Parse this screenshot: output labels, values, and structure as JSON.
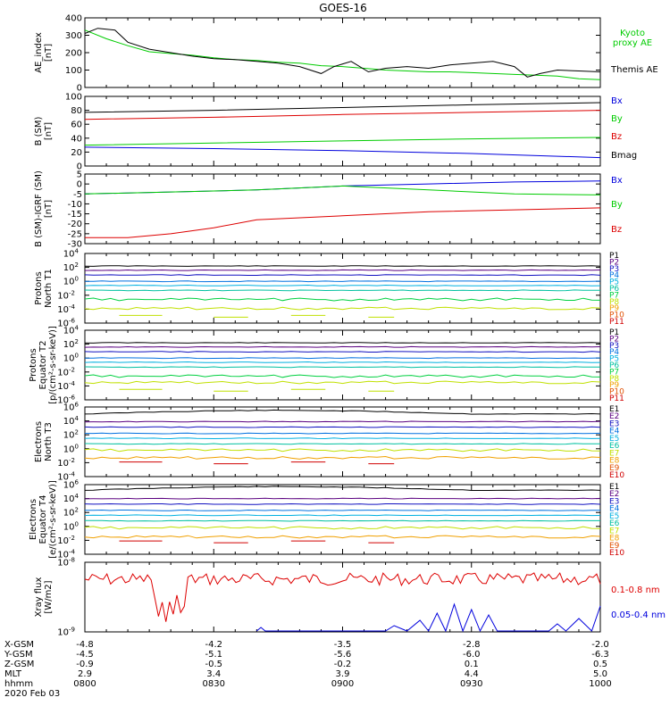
{
  "title": "GOES-16",
  "date_label": "2020 Feb 03",
  "time_axis": {
    "ticks": [
      "0800",
      "0830",
      "0900",
      "0930",
      "1000"
    ],
    "rows": [
      {
        "label": "X-GSM",
        "values": [
          "-4.8",
          "-4.2",
          "-3.5",
          "-2.8",
          "-2.0"
        ]
      },
      {
        "label": "Y-GSM",
        "values": [
          "-4.5",
          "-5.1",
          "-5.6",
          "-6.0",
          "-6.3"
        ]
      },
      {
        "label": "Z-GSM",
        "values": [
          "-0.9",
          "-0.5",
          "-0.2",
          "0.1",
          "0.5"
        ]
      },
      {
        "label": "MLT",
        "values": [
          "2.9",
          "3.4",
          "3.9",
          "4.4",
          "5.0"
        ]
      },
      {
        "label": "hhmm",
        "values": [
          "0800",
          "0830",
          "0900",
          "0930",
          "1000"
        ]
      }
    ]
  },
  "colors": {
    "black": "#000000",
    "red": "#dd0000",
    "green": "#00cc00",
    "blue": "#0000dd",
    "P1": "#000000",
    "P2": "#5a0080",
    "P3": "#1010c0",
    "P4": "#0070e0",
    "P5": "#00b0e0",
    "P6": "#00c0a0",
    "P7": "#00d040",
    "P8": "#c0e000",
    "P9": "#f0a000",
    "P10": "#e05000",
    "P11": "#d00000"
  },
  "chart_data": [
    {
      "id": "ae",
      "type": "line",
      "ylabel": [
        "AE_index",
        "[nT]"
      ],
      "ylim": [
        0,
        400
      ],
      "yticks": [
        "0",
        "100",
        "200",
        "300",
        "400"
      ],
      "series": [
        {
          "name": "Kyoto proxy AE",
          "label_lines": [
            "Kyoto",
            "proxy AE"
          ],
          "color": "#00cc00",
          "x": [
            0,
            5,
            10,
            15,
            20,
            25,
            30,
            35,
            40,
            45,
            50,
            55,
            60,
            65,
            70,
            75,
            80,
            85,
            90,
            95,
            100,
            105,
            110,
            115,
            120
          ],
          "y": [
            330,
            280,
            240,
            205,
            195,
            185,
            170,
            160,
            155,
            145,
            140,
            125,
            120,
            110,
            100,
            95,
            90,
            90,
            85,
            80,
            75,
            70,
            65,
            50,
            45
          ]
        },
        {
          "name": "Themis AE",
          "label_lines": [
            "Themis AE"
          ],
          "color": "#000000",
          "x": [
            0,
            3,
            7,
            10,
            15,
            20,
            25,
            30,
            35,
            40,
            45,
            50,
            55,
            58,
            62,
            66,
            70,
            75,
            80,
            85,
            90,
            95,
            100,
            103,
            106,
            110,
            115,
            120
          ],
          "y": [
            310,
            340,
            330,
            260,
            220,
            200,
            180,
            165,
            160,
            150,
            140,
            120,
            80,
            120,
            150,
            90,
            110,
            120,
            110,
            130,
            140,
            150,
            120,
            60,
            80,
            100,
            95,
            90
          ]
        }
      ]
    },
    {
      "id": "bsm",
      "type": "line",
      "ylabel": [
        "B (SM)",
        "[nT]"
      ],
      "ylim": [
        0,
        100
      ],
      "yticks": [
        "0",
        "20",
        "40",
        "60",
        "80",
        "100"
      ],
      "series": [
        {
          "name": "Bx",
          "color": "#0000dd",
          "x": [
            0,
            30,
            60,
            90,
            120
          ],
          "y": [
            27,
            25,
            22,
            18,
            12
          ]
        },
        {
          "name": "By",
          "color": "#00cc00",
          "x": [
            0,
            30,
            60,
            90,
            120
          ],
          "y": [
            30,
            33,
            36,
            39,
            41
          ]
        },
        {
          "name": "Bz",
          "color": "#dd0000",
          "x": [
            0,
            30,
            60,
            90,
            120
          ],
          "y": [
            67,
            70,
            74,
            77,
            80
          ]
        },
        {
          "name": "Bmag",
          "color": "#000000",
          "x": [
            0,
            30,
            60,
            90,
            120
          ],
          "y": [
            77,
            80,
            84,
            88,
            91
          ]
        }
      ]
    },
    {
      "id": "bigrf",
      "type": "line",
      "ylabel": [
        "B (SM)-IGRF (SM)",
        "[nT]"
      ],
      "ylim": [
        -30,
        5
      ],
      "yticks": [
        "-30",
        "-25",
        "-20",
        "-15",
        "-10",
        "-5",
        "0",
        "5"
      ],
      "series": [
        {
          "name": "Bx",
          "color": "#0000dd",
          "x": [
            0,
            20,
            40,
            60,
            80,
            100,
            120
          ],
          "y": [
            -5,
            -4,
            -3,
            -1,
            0,
            1,
            1.5
          ]
        },
        {
          "name": "By",
          "color": "#00cc00",
          "x": [
            0,
            20,
            40,
            60,
            80,
            100,
            120
          ],
          "y": [
            -5,
            -4,
            -3,
            -1,
            -3,
            -5,
            -5.5
          ]
        },
        {
          "name": "Bz",
          "color": "#dd0000",
          "x": [
            0,
            10,
            20,
            30,
            40,
            60,
            80,
            100,
            120
          ],
          "y": [
            -27,
            -27,
            -25,
            -22,
            -18,
            -16,
            -14,
            -13,
            -12
          ]
        }
      ]
    },
    {
      "id": "p_north",
      "type": "line",
      "log": true,
      "ylabel": [
        "Protons",
        "North T1"
      ],
      "ylim_exp": [
        -6,
        4
      ],
      "ytick_exp": [
        -6,
        -4,
        -2,
        0,
        2,
        4
      ],
      "channels": [
        "P1",
        "P2",
        "P3",
        "P4",
        "P5",
        "P6",
        "P7",
        "P8",
        "P9",
        "P10",
        "P11"
      ],
      "levels_exp": [
        2.2,
        1.6,
        0.9,
        0.0,
        -0.6,
        -1.3,
        -2.6,
        -3.9
      ]
    },
    {
      "id": "p_equator",
      "type": "line",
      "log": true,
      "ylabel": [
        "Protons",
        "Equator T2",
        "[p/(cm²-s-sr-keV)]"
      ],
      "ylim_exp": [
        -6,
        4
      ],
      "ytick_exp": [
        -6,
        -4,
        -2,
        0,
        2,
        4
      ],
      "channels": [
        "P1",
        "P2",
        "P3",
        "P4",
        "P5",
        "P6",
        "P7",
        "P8",
        "P9",
        "P10",
        "P11"
      ],
      "levels_exp": [
        2.2,
        1.6,
        0.9,
        0.0,
        -0.6,
        -1.3,
        -2.6,
        -3.5
      ]
    },
    {
      "id": "e_north",
      "type": "line",
      "log": true,
      "ylabel": [
        "Electrons",
        "North T3"
      ],
      "ylim_exp": [
        -4,
        6
      ],
      "ytick_exp": [
        -4,
        -2,
        0,
        2,
        4,
        6
      ],
      "channels": [
        "E1",
        "E2",
        "E3",
        "E4",
        "E5",
        "E6",
        "E7",
        "E8",
        "E9",
        "E10"
      ],
      "levels_exp": [
        5.0,
        3.9,
        3.1,
        2.2,
        1.5,
        0.7,
        -0.2,
        -1.3
      ]
    },
    {
      "id": "e_equator",
      "type": "line",
      "log": true,
      "ylabel": [
        "Electrons",
        "Equator T4",
        "[e/(cm²-s-sr-keV)]"
      ],
      "ylim_exp": [
        -4,
        6
      ],
      "ytick_exp": [
        -4,
        -2,
        0,
        2,
        4,
        6
      ],
      "channels": [
        "E1",
        "E2",
        "E3",
        "E4",
        "E5",
        "E6",
        "E7",
        "E8",
        "E9",
        "E10"
      ],
      "levels_exp": [
        5.2,
        4.0,
        3.2,
        2.3,
        1.6,
        0.8,
        -0.2,
        -1.5
      ]
    },
    {
      "id": "xray",
      "type": "line",
      "log": true,
      "ylabel": [
        "Xray flux",
        "[W/m2]"
      ],
      "ylim_exp": [
        -9,
        -8
      ],
      "ytick_exp": [
        -9,
        -8
      ],
      "series": [
        {
          "name": "0.1-0.8 nm",
          "color": "#dd0000"
        },
        {
          "name": "0.05-0.4 nm",
          "color": "#0000dd"
        }
      ]
    }
  ],
  "channel_colors": {
    "P": [
      "#000000",
      "#5a0080",
      "#1010c0",
      "#0070e0",
      "#00b0e0",
      "#00c0a0",
      "#00d040",
      "#c0e000",
      "#f0a000",
      "#e05000",
      "#d00000"
    ],
    "E": [
      "#000000",
      "#5a0080",
      "#1010c0",
      "#0070e0",
      "#00b0e0",
      "#00c0a0",
      "#c0e000",
      "#f0a000",
      "#e05000",
      "#d00000"
    ]
  }
}
